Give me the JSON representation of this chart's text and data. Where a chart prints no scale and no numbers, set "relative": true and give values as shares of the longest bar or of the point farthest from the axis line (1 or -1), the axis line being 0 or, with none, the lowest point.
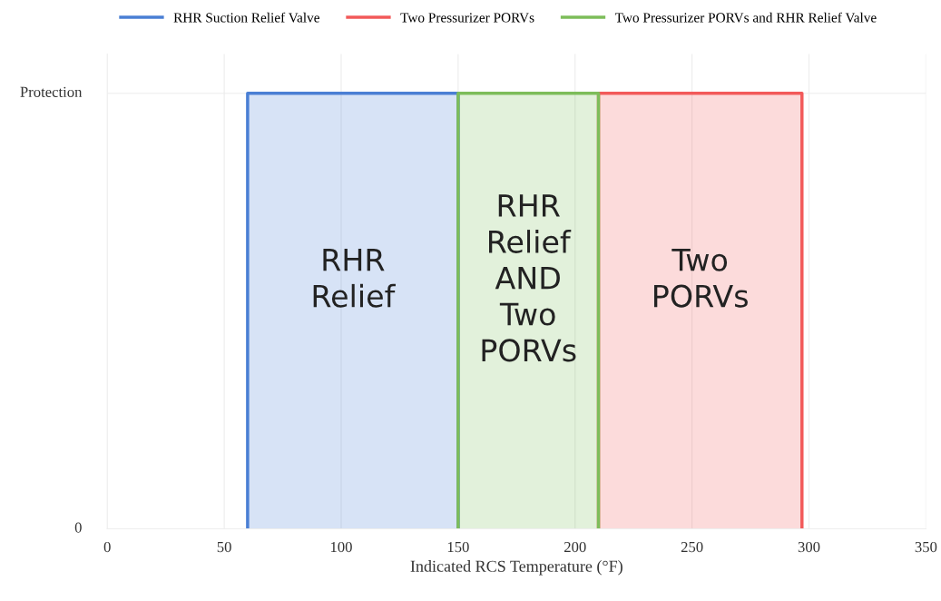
{
  "chart_data": {
    "type": "area",
    "xlabel": "Indicated RCS Temperature (°F)",
    "xlim": [
      0,
      350
    ],
    "xticks": [
      0,
      50,
      100,
      150,
      200,
      250,
      300,
      350
    ],
    "relative": true,
    "grid": true,
    "legend": "top",
    "series": [
      {
        "name": "RHR Suction Relief Valve",
        "color": "#4a7fd4",
        "x": [
          60,
          60,
          150,
          150
        ],
        "values": [
          0,
          1,
          1,
          0
        ]
      },
      {
        "name": "Two Pressurizer PORVs",
        "color": "#f25a5a",
        "x": [
          210,
          210,
          297,
          297
        ],
        "values": [
          0,
          1,
          1,
          0
        ]
      },
      {
        "name": "Two Pressurizer PORVs and RHR Relief Valve",
        "color": "#7dbd5a",
        "x": [
          150,
          150,
          210,
          210
        ],
        "values": [
          0,
          1,
          1,
          0
        ]
      }
    ],
    "annotations": [
      "0",
      "Protection",
      "RHR\nRelief",
      "RHR\nRelief\nAND\nTwo\nPORVs",
      "Two\nPORVs"
    ]
  }
}
